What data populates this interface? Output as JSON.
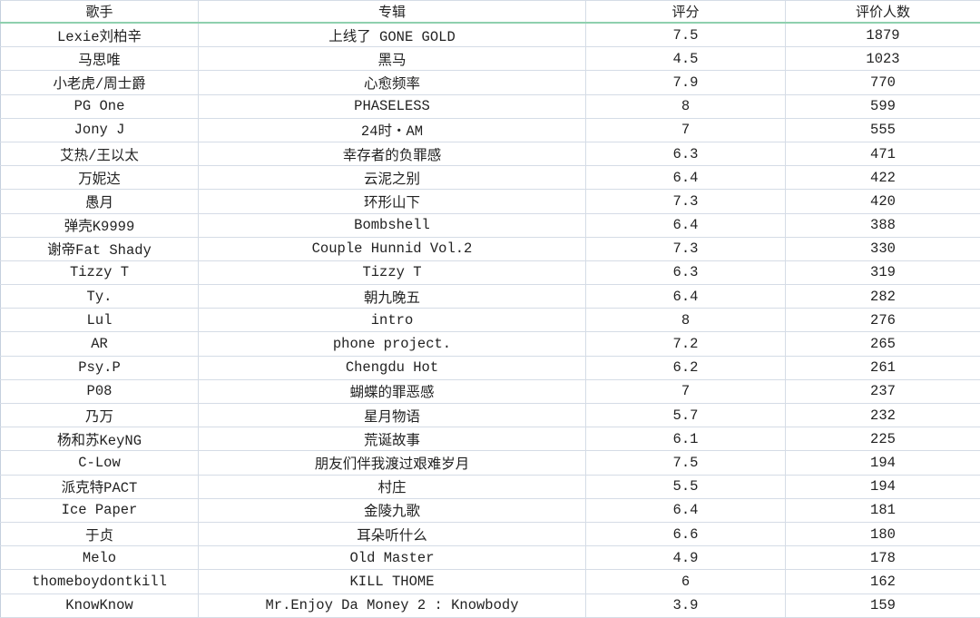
{
  "headers": [
    "歌手",
    "专辑",
    "评分",
    "评价人数"
  ],
  "rows": [
    [
      "Lexie刘柏辛",
      "上线了 GONE GOLD",
      "7.5",
      "1879"
    ],
    [
      "马思唯",
      "黑马",
      "4.5",
      "1023"
    ],
    [
      "小老虎/周士爵",
      "心愈频率",
      "7.9",
      "770"
    ],
    [
      "PG One",
      "PHASELESS",
      "8",
      "599"
    ],
    [
      "Jony J",
      "24时・AM",
      "7",
      "555"
    ],
    [
      "艾热/王以太",
      "幸存者的负罪感",
      "6.3",
      "471"
    ],
    [
      "万妮达",
      "云泥之别",
      "6.4",
      "422"
    ],
    [
      "愚月",
      "环形山下",
      "7.3",
      "420"
    ],
    [
      "弹壳K9999",
      "Bombshell",
      "6.4",
      "388"
    ],
    [
      "谢帝Fat Shady",
      "Couple Hunnid Vol.2",
      "7.3",
      "330"
    ],
    [
      "Tizzy T",
      "Tizzy T",
      "6.3",
      "319"
    ],
    [
      "Ty.",
      "朝九晚五",
      "6.4",
      "282"
    ],
    [
      "Lul",
      "intro",
      "8",
      "276"
    ],
    [
      "AR",
      "phone project.",
      "7.2",
      "265"
    ],
    [
      "Psy.P",
      "Chengdu Hot",
      "6.2",
      "261"
    ],
    [
      "P08",
      "蝴蝶的罪恶感",
      "7",
      "237"
    ],
    [
      "乃万",
      "星月物语",
      "5.7",
      "232"
    ],
    [
      "杨和苏KeyNG",
      "荒诞故事",
      "6.1",
      "225"
    ],
    [
      "C-Low",
      "朋友们伴我渡过艰难岁月",
      "7.5",
      "194"
    ],
    [
      "派克特PACT",
      "村庄",
      "5.5",
      "194"
    ],
    [
      "Ice Paper",
      "金陵九歌",
      "6.4",
      "181"
    ],
    [
      "于贞",
      "耳朵听什么",
      "6.6",
      "180"
    ],
    [
      "Melo",
      "Old Master",
      "4.9",
      "178"
    ],
    [
      "thomeboydontkill",
      "KILL THOME",
      "6",
      "162"
    ],
    [
      "KnowKnow",
      "Mr.Enjoy Da Money 2 : Knowbody",
      "3.9",
      "159"
    ]
  ]
}
